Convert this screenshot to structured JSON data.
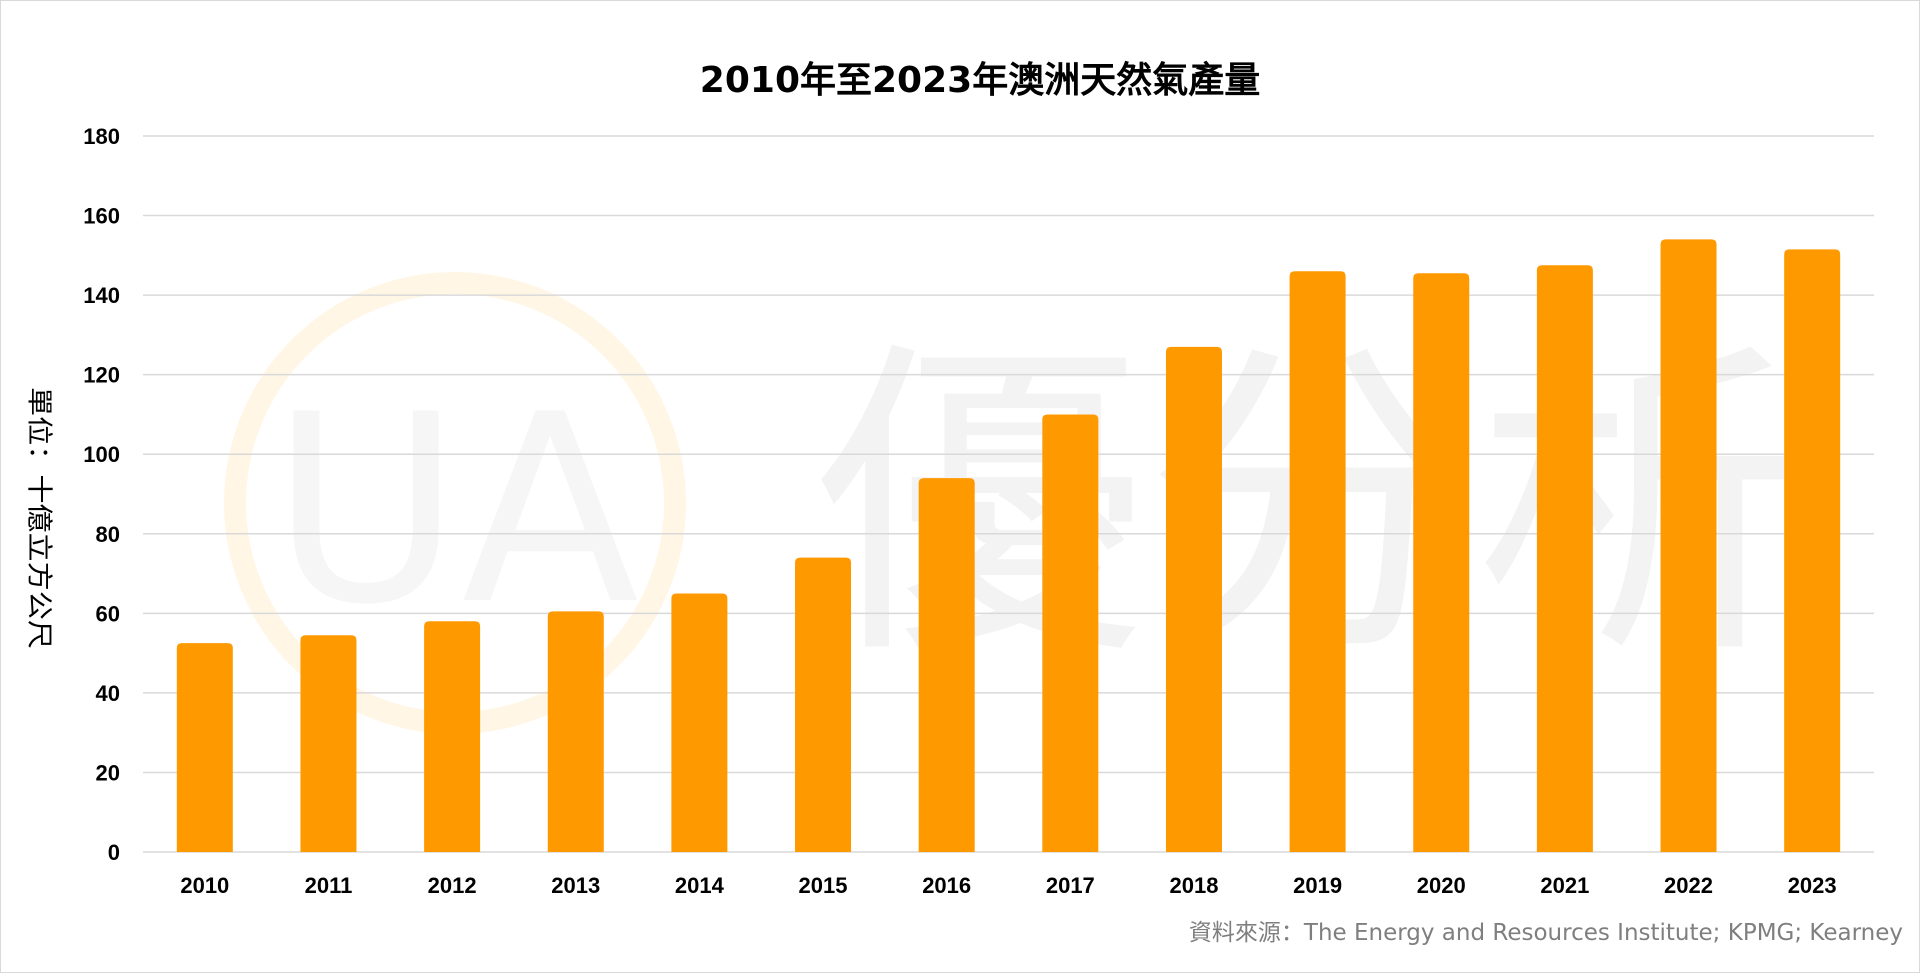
{
  "chart_data": {
    "type": "bar",
    "title": "2010年至2023年澳洲天然氣產量",
    "ylabel": "單位：十億立方公尺",
    "xlabel": "",
    "categories": [
      "2010",
      "2011",
      "2012",
      "2013",
      "2014",
      "2015",
      "2016",
      "2017",
      "2018",
      "2019",
      "2020",
      "2021",
      "2022",
      "2023"
    ],
    "values": [
      52.5,
      54.5,
      58,
      60.5,
      65,
      74,
      94,
      110,
      127,
      146,
      145.5,
      147.5,
      154,
      151.5
    ],
    "ylim": [
      0,
      180
    ],
    "yticks": [
      0,
      20,
      40,
      60,
      80,
      100,
      120,
      140,
      160,
      180
    ],
    "grid": true,
    "bar_color": "#ff9900",
    "source": "資料來源：The Energy and Resources Institute; KPMG; Kearney"
  },
  "watermark": {
    "logo_letters": "UA",
    "text": "優分析",
    "circle_color": "#fff6e5",
    "text_color": "#f3f3f3"
  }
}
